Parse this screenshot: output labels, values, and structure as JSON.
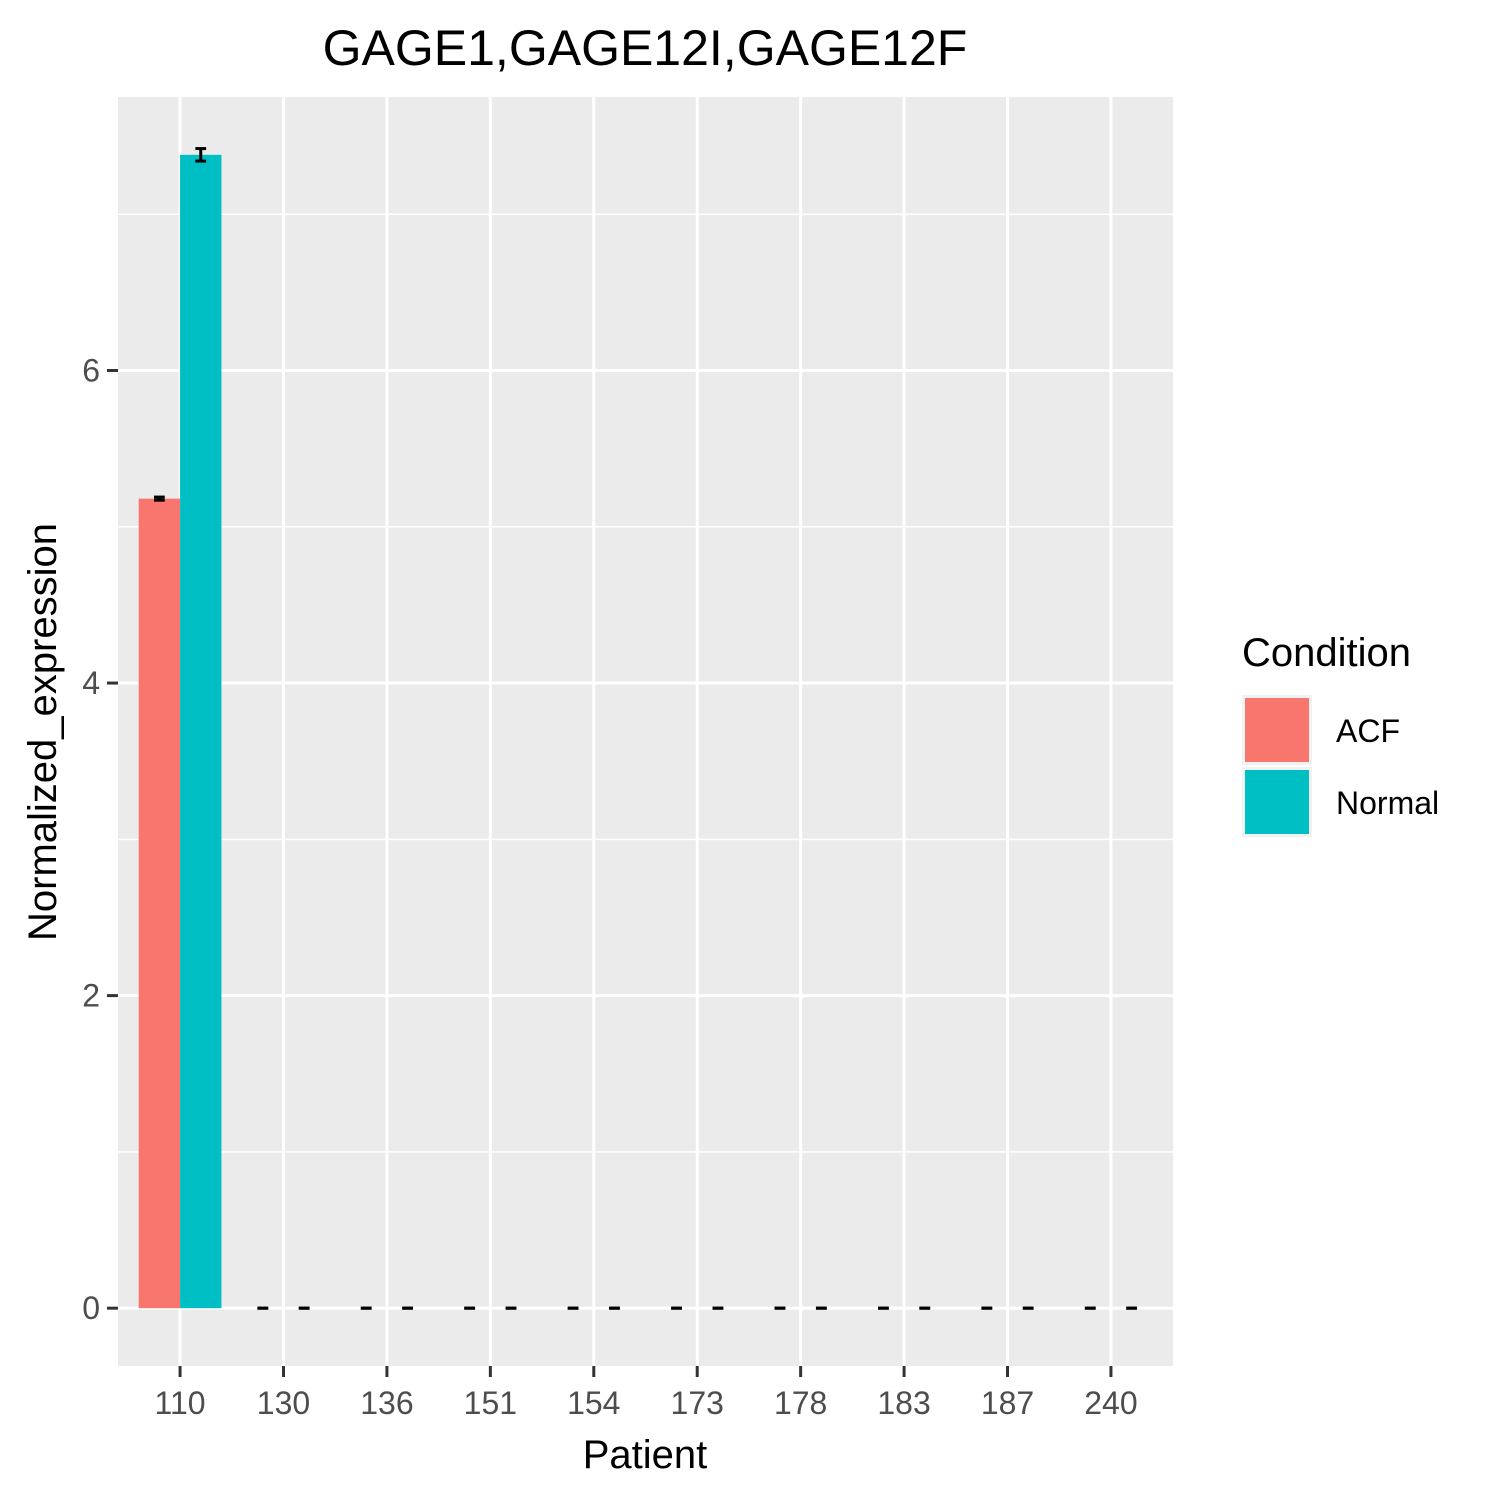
{
  "chart_data": {
    "type": "bar",
    "title": "GAGE1,GAGE12I,GAGE12F",
    "xlabel": "Patient",
    "ylabel": "Normalized_expression",
    "categories": [
      "110",
      "130",
      "136",
      "151",
      "154",
      "173",
      "178",
      "183",
      "187",
      "240"
    ],
    "series": [
      {
        "name": "ACF",
        "color": "#F8766D",
        "values": [
          5.18,
          0,
          0,
          0,
          0,
          0,
          0,
          0,
          0,
          0
        ],
        "err": [
          0.01,
          0,
          0,
          0,
          0,
          0,
          0,
          0,
          0,
          0
        ]
      },
      {
        "name": "Normal",
        "color": "#00BFC4",
        "values": [
          7.38,
          0,
          0,
          0,
          0,
          0,
          0,
          0,
          0,
          0
        ],
        "err": [
          0.04,
          0,
          0,
          0,
          0,
          0,
          0,
          0,
          0,
          0
        ]
      }
    ],
    "ylim": [
      -0.37,
      7.75
    ],
    "yticks": [
      0,
      2,
      4,
      6
    ],
    "grid": true,
    "legend": {
      "title": "Condition",
      "position": "right"
    }
  }
}
